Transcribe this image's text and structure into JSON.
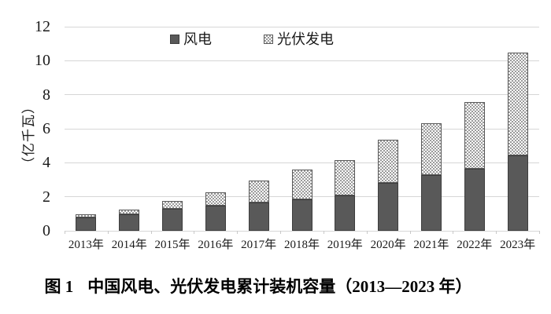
{
  "figure": {
    "caption_prefix": "图 1",
    "caption_title": "中国风电、光伏发电累计装机容量（2013—2023 年）"
  },
  "chart_data": {
    "type": "bar",
    "stacked": true,
    "title": "图 1 中国风电、光伏发电累计装机容量（2013—2023 年）",
    "categories": [
      "2013年",
      "2014年",
      "2015年",
      "2016年",
      "2017年",
      "2018年",
      "2019年",
      "2020年",
      "2021年",
      "2022年",
      "2023年"
    ],
    "series": [
      {
        "name": "风电",
        "values": [
          0.77,
          0.96,
          1.31,
          1.49,
          1.64,
          1.84,
          2.1,
          2.81,
          3.28,
          3.65,
          4.41
        ],
        "fill": "solid",
        "color": "#595959"
      },
      {
        "name": "光伏发电",
        "values": [
          0.19,
          0.28,
          0.43,
          0.77,
          1.3,
          1.74,
          2.04,
          2.53,
          3.06,
          3.93,
          6.09
        ],
        "fill": "checker-pattern",
        "color": "#9b9b9b"
      }
    ],
    "totals": [
      0.96,
      1.24,
      1.74,
      2.26,
      2.94,
      3.58,
      4.14,
      5.34,
      6.34,
      7.58,
      10.5
    ],
    "xlabel": "",
    "ylabel": "（亿千瓦）",
    "ylim": [
      0,
      12
    ],
    "yticks": [
      0,
      2,
      4,
      6,
      8,
      10,
      12
    ],
    "grid": true,
    "legend_position": "top-center"
  },
  "colors": {
    "wind_bar": "#595959",
    "solar_pattern_dot": "#9b9b9b",
    "solar_pattern_bg": "#fcfcfc",
    "bar_border": "#4a4a4a",
    "gridline": "#d6d6d6",
    "text": "#1a1a1a"
  }
}
